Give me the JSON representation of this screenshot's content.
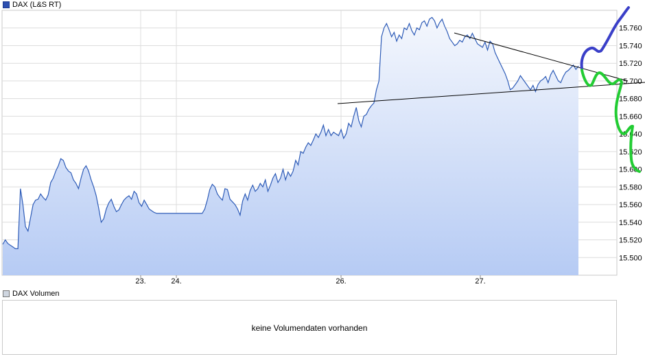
{
  "legend": {
    "main_label": "DAX (L&S RT)",
    "volume_label": "DAX Volumen"
  },
  "volume": {
    "message": "keine Volumendaten vorhanden"
  },
  "colors": {
    "line": "#2d5bb7",
    "fill_top": "#e8effb",
    "fill_bottom": "#b8cdf5",
    "grid": "#dcdcdc",
    "annot_blue": "#3a3fc8",
    "annot_green": "#22cc33"
  },
  "chart_data": {
    "type": "area",
    "title": "DAX (L&S RT)",
    "xlabel": "",
    "ylabel": "",
    "x_ticks": [
      "23.",
      "24.",
      "26.",
      "27."
    ],
    "y_ticks": [
      15500,
      15520,
      15540,
      15560,
      15580,
      15600,
      15620,
      15640,
      15660,
      15680,
      15700,
      15720,
      15740,
      15760
    ],
    "y_tick_labels": [
      "15.500",
      "15.520",
      "15.540",
      "15.560",
      "15.580",
      "15.600",
      "15.620",
      "15.640",
      "15.660",
      "15.680",
      "15.700",
      "15.720",
      "15.740",
      "15.760"
    ],
    "ylim": [
      15480,
      15780
    ],
    "grid": true,
    "series": [
      {
        "values": [
          15515,
          15520,
          15516,
          15514,
          15512,
          15510,
          15510,
          15578,
          15560,
          15535,
          15530,
          15545,
          15560,
          15565,
          15566,
          15572,
          15568,
          15565,
          15571,
          15585,
          15590,
          15598,
          15604,
          15612,
          15610,
          15602,
          15598,
          15596,
          15588,
          15584,
          15578,
          15590,
          15600,
          15604,
          15598,
          15588,
          15580,
          15570,
          15556,
          15540,
          15544,
          15555,
          15562,
          15566,
          15558,
          15552,
          15554,
          15560,
          15565,
          15568,
          15570,
          15566,
          15575,
          15572,
          15562,
          15558,
          15565,
          15560,
          15555,
          15553,
          15551,
          15550,
          15550,
          15550,
          15550,
          15550,
          15550,
          15550,
          15550,
          15550,
          15550,
          15550,
          15550,
          15550,
          15550,
          15550,
          15550,
          15550,
          15550,
          15550,
          15555,
          15565,
          15577,
          15583,
          15580,
          15572,
          15568,
          15565,
          15578,
          15577,
          15566,
          15563,
          15560,
          15555,
          15548,
          15564,
          15572,
          15565,
          15576,
          15582,
          15575,
          15578,
          15584,
          15580,
          15588,
          15575,
          15582,
          15590,
          15595,
          15585,
          15590,
          15600,
          15588,
          15597,
          15592,
          15598,
          15610,
          15605,
          15620,
          15618,
          15625,
          15630,
          15627,
          15633,
          15640,
          15636,
          15642,
          15650,
          15638,
          15645,
          15638,
          15642,
          15640,
          15638,
          15645,
          15635,
          15640,
          15652,
          15648,
          15660,
          15670,
          15655,
          15648,
          15660,
          15662,
          15668,
          15672,
          15675,
          15690,
          15700,
          15750,
          15760,
          15765,
          15758,
          15750,
          15755,
          15745,
          15752,
          15748,
          15760,
          15758,
          15765,
          15757,
          15752,
          15760,
          15758,
          15766,
          15768,
          15762,
          15770,
          15772,
          15768,
          15760,
          15766,
          15770,
          15762,
          15756,
          15748,
          15744,
          15740,
          15742,
          15746,
          15744,
          15750,
          15752,
          15748,
          15754,
          15748,
          15742,
          15740,
          15738,
          15744,
          15735,
          15745,
          15742,
          15732,
          15726,
          15720,
          15714,
          15708,
          15700,
          15690,
          15692,
          15696,
          15700,
          15706,
          15702,
          15698,
          15694,
          15690,
          15695,
          15688,
          15696,
          15700,
          15702,
          15705,
          15698,
          15707,
          15712,
          15706,
          15700,
          15698,
          15705,
          15710,
          15712,
          15715,
          15718,
          15713,
          15717
        ]
      }
    ],
    "annotations": {
      "resistance_line": "Abwärtstrend",
      "support_line": "Aufwärtstrend"
    }
  }
}
